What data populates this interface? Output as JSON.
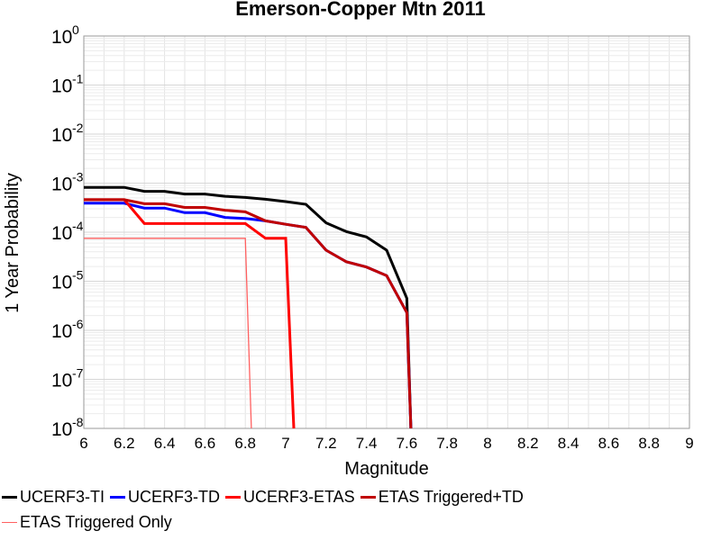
{
  "chart_data": {
    "type": "line",
    "title": "Emerson-Copper Mtn 2011",
    "xlabel": "Magnitude",
    "ylabel": "1 Year Probability",
    "xlim": [
      6,
      9
    ],
    "ylim": [
      1e-08,
      1
    ],
    "yscale": "log",
    "grid": true,
    "legend_position": "bottom",
    "x_ticks": [
      "6",
      "6.2",
      "6.4",
      "6.6",
      "6.8",
      "7",
      "7.2",
      "7.4",
      "7.6",
      "7.8",
      "8",
      "8.2",
      "8.4",
      "8.6",
      "8.8",
      "9"
    ],
    "y_ticks": [
      {
        "base": "10",
        "exp": "0"
      },
      {
        "base": "10",
        "exp": "-1"
      },
      {
        "base": "10",
        "exp": "-2"
      },
      {
        "base": "10",
        "exp": "-3"
      },
      {
        "base": "10",
        "exp": "-4"
      },
      {
        "base": "10",
        "exp": "-5"
      },
      {
        "base": "10",
        "exp": "-6"
      },
      {
        "base": "10",
        "exp": "-7"
      },
      {
        "base": "10",
        "exp": "-8"
      }
    ],
    "series": [
      {
        "name": "UCERF3-TI",
        "color": "#000000",
        "width": 3,
        "x": [
          6.0,
          6.1,
          6.2,
          6.3,
          6.4,
          6.5,
          6.6,
          6.7,
          6.8,
          6.9,
          7.0,
          7.1,
          7.2,
          7.3,
          7.4,
          7.5,
          7.6,
          7.62
        ],
        "y": [
          0.00082,
          0.00082,
          0.00082,
          0.00068,
          0.00068,
          0.0006,
          0.0006,
          0.00054,
          0.00051,
          0.00047,
          0.00042,
          0.00037,
          0.000155,
          0.000103,
          8e-05,
          4.3e-05,
          4.5e-06,
          1e-08
        ]
      },
      {
        "name": "UCERF3-TD",
        "color": "#0000ff",
        "width": 3,
        "x": [
          6.0,
          6.1,
          6.2,
          6.3,
          6.4,
          6.5,
          6.6,
          6.7,
          6.8,
          6.9,
          7.0,
          7.1,
          7.2,
          7.3,
          7.4,
          7.5,
          7.6,
          7.62
        ],
        "y": [
          0.00039,
          0.00039,
          0.00039,
          0.00031,
          0.00031,
          0.00025,
          0.00025,
          0.0002,
          0.00019,
          0.00017,
          0.000145,
          0.000125,
          4.3e-05,
          2.5e-05,
          1.95e-05,
          1.3e-05,
          2.3e-06,
          1e-08
        ]
      },
      {
        "name": "UCERF3-ETAS",
        "color": "#ff0000",
        "width": 3,
        "x": [
          6.0,
          6.1,
          6.2,
          6.3,
          6.4,
          6.5,
          6.6,
          6.7,
          6.8,
          6.9,
          7.0,
          7.04
        ],
        "y": [
          0.00046,
          0.00046,
          0.00046,
          0.00015,
          0.00015,
          0.00015,
          0.00015,
          0.00015,
          0.00015,
          7.5e-05,
          7.5e-05,
          1e-08
        ]
      },
      {
        "name": "ETAS Triggered+TD",
        "color": "#c00000",
        "width": 3,
        "x": [
          6.0,
          6.1,
          6.2,
          6.3,
          6.4,
          6.5,
          6.6,
          6.7,
          6.8,
          6.9,
          7.0,
          7.1,
          7.2,
          7.3,
          7.4,
          7.5,
          7.6,
          7.62
        ],
        "y": [
          0.00046,
          0.00046,
          0.00046,
          0.00038,
          0.00038,
          0.00032,
          0.00032,
          0.00028,
          0.00026,
          0.00017,
          0.000145,
          0.000125,
          4.3e-05,
          2.5e-05,
          1.95e-05,
          1.3e-05,
          2.3e-06,
          1e-08
        ]
      },
      {
        "name": "ETAS Triggered Only",
        "color": "#ff6060",
        "width": 1.3,
        "x": [
          6.0,
          6.1,
          6.2,
          6.3,
          6.4,
          6.5,
          6.6,
          6.7,
          6.8,
          6.83
        ],
        "y": [
          7.5e-05,
          7.5e-05,
          7.5e-05,
          7.5e-05,
          7.5e-05,
          7.5e-05,
          7.5e-05,
          7.5e-05,
          7.5e-05,
          1e-08
        ]
      }
    ]
  }
}
